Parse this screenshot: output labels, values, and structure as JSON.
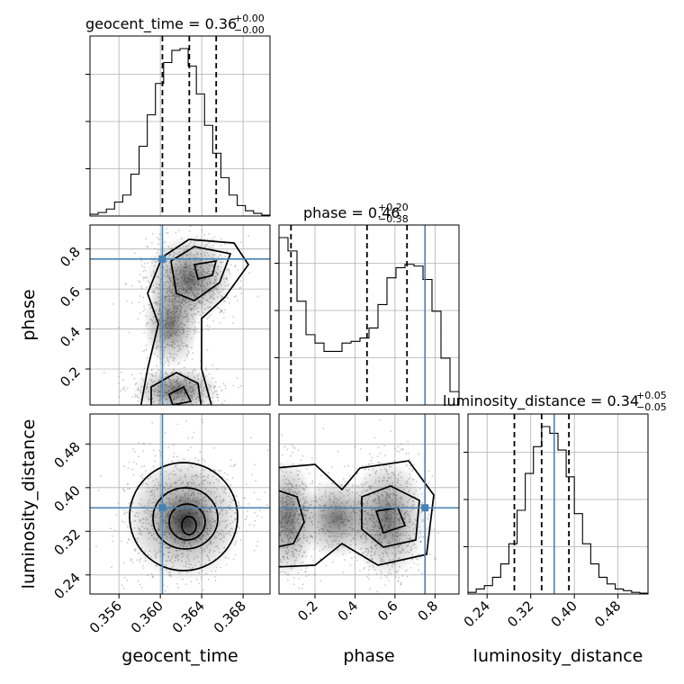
{
  "chart_data": {
    "type": "corner",
    "parameters": [
      "geocent_time",
      "phase",
      "luminosity_distance"
    ],
    "titles": [
      {
        "param": "geocent_time",
        "text": "geocent_time = 0.36",
        "plus": "+0.00",
        "minus": "−0.00"
      },
      {
        "param": "phase",
        "text": "phase = 0.46",
        "plus": "+0.20",
        "minus": "−0.38"
      },
      {
        "param": "luminosity_distance",
        "text": "luminosity_distance = 0.34",
        "plus": "+0.05",
        "minus": "−0.05"
      }
    ],
    "ranges": {
      "geocent_time": [
        0.3532,
        0.3706
      ],
      "phase": [
        0.02,
        0.92
      ],
      "luminosity_distance": [
        0.205,
        0.535
      ]
    },
    "ticks": {
      "geocent_time": [
        0.356,
        0.36,
        0.364,
        0.368
      ],
      "phase": [
        0.2,
        0.4,
        0.6,
        0.8
      ],
      "luminosity_distance": [
        0.24,
        0.32,
        0.4,
        0.48
      ]
    },
    "tick_labels": {
      "geocent_time": [
        "0.356",
        "0.360",
        "0.364",
        "0.368"
      ],
      "phase": [
        "0.2",
        "0.4",
        "0.6",
        "0.8"
      ],
      "luminosity_distance": [
        "0.24",
        "0.32",
        "0.40",
        "0.48"
      ]
    },
    "truths": {
      "geocent_time": 0.3602,
      "phase": 0.75,
      "luminosity_distance": 0.363
    },
    "quantiles": {
      "geocent_time": [
        0.3602,
        0.3628,
        0.3654
      ],
      "phase": [
        0.08,
        0.46,
        0.66
      ],
      "luminosity_distance": [
        0.29,
        0.34,
        0.39
      ]
    },
    "histograms": {
      "geocent_time": [
        1,
        2,
        4,
        8,
        12,
        24,
        40,
        58,
        76,
        88,
        95,
        96,
        86,
        70,
        52,
        36,
        22,
        12,
        6,
        3,
        1.5,
        0.5
      ],
      "phase": [
        100,
        92,
        62,
        42,
        37,
        32,
        32,
        37,
        38,
        40,
        46,
        60,
        76,
        82,
        84,
        83,
        75,
        56,
        28,
        8
      ],
      "luminosity_distance": [
        1,
        3,
        5,
        10,
        18,
        30,
        50,
        72,
        88,
        100,
        96,
        86,
        70,
        48,
        30,
        18,
        10,
        6,
        3,
        2,
        1,
        0.5
      ]
    },
    "truth_color": "#4682b4",
    "quantile_style": "dashed",
    "grid": true
  }
}
